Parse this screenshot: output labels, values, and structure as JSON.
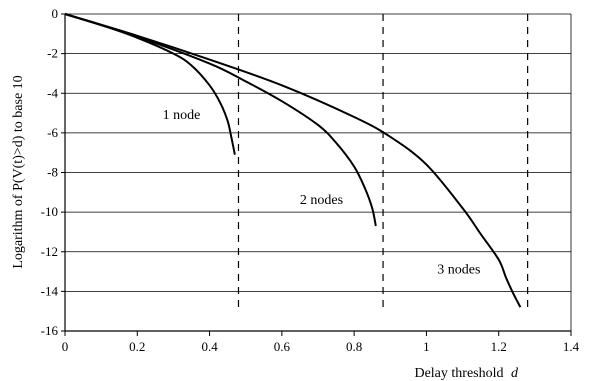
{
  "chart_data": {
    "type": "line",
    "title": "",
    "xlabel": "Delay threshold",
    "xlabel_var": "d",
    "ylabel": "Logarithm of P(V(t)>d) to base 10",
    "xlim": [
      0,
      1.4
    ],
    "ylim": [
      -16,
      0
    ],
    "x_ticks": [
      "0",
      "0.2",
      "0.4",
      "0.6",
      "0.8",
      "1",
      "1.2",
      "1.4"
    ],
    "y_ticks": [
      "0",
      "-2",
      "-4",
      "-6",
      "-8",
      "-10",
      "-12",
      "-14",
      "-16"
    ],
    "grid": "horizontal",
    "vertical_markers": [
      0.48,
      0.88,
      1.28
    ],
    "series": [
      {
        "name": "1 node",
        "x": [
          0,
          0.1,
          0.2,
          0.3,
          0.35,
          0.4,
          0.43,
          0.45,
          0.46,
          0.47
        ],
        "y": [
          0,
          -0.55,
          -1.2,
          -2.0,
          -2.6,
          -3.6,
          -4.5,
          -5.4,
          -6.2,
          -7.1
        ]
      },
      {
        "name": "2 nodes",
        "x": [
          0,
          0.2,
          0.4,
          0.5,
          0.6,
          0.7,
          0.75,
          0.8,
          0.83,
          0.85,
          0.86
        ],
        "y": [
          0,
          -1.15,
          -2.5,
          -3.4,
          -4.4,
          -5.6,
          -6.5,
          -7.7,
          -8.8,
          -9.8,
          -10.7
        ]
      },
      {
        "name": "3 nodes",
        "x": [
          0,
          0.2,
          0.4,
          0.6,
          0.8,
          0.9,
          1.0,
          1.1,
          1.15,
          1.2,
          1.22,
          1.24,
          1.26
        ],
        "y": [
          0,
          -1.1,
          -2.3,
          -3.6,
          -5.2,
          -6.2,
          -7.6,
          -9.8,
          -11.1,
          -12.4,
          -13.3,
          -14.1,
          -14.8
        ]
      }
    ],
    "labels": [
      {
        "text": "1 node",
        "x": 0.27,
        "y": -5.3
      },
      {
        "text": "2 nodes",
        "x": 0.65,
        "y": -9.6
      },
      {
        "text": "3 nodes",
        "x": 1.03,
        "y": -13.1
      }
    ]
  }
}
